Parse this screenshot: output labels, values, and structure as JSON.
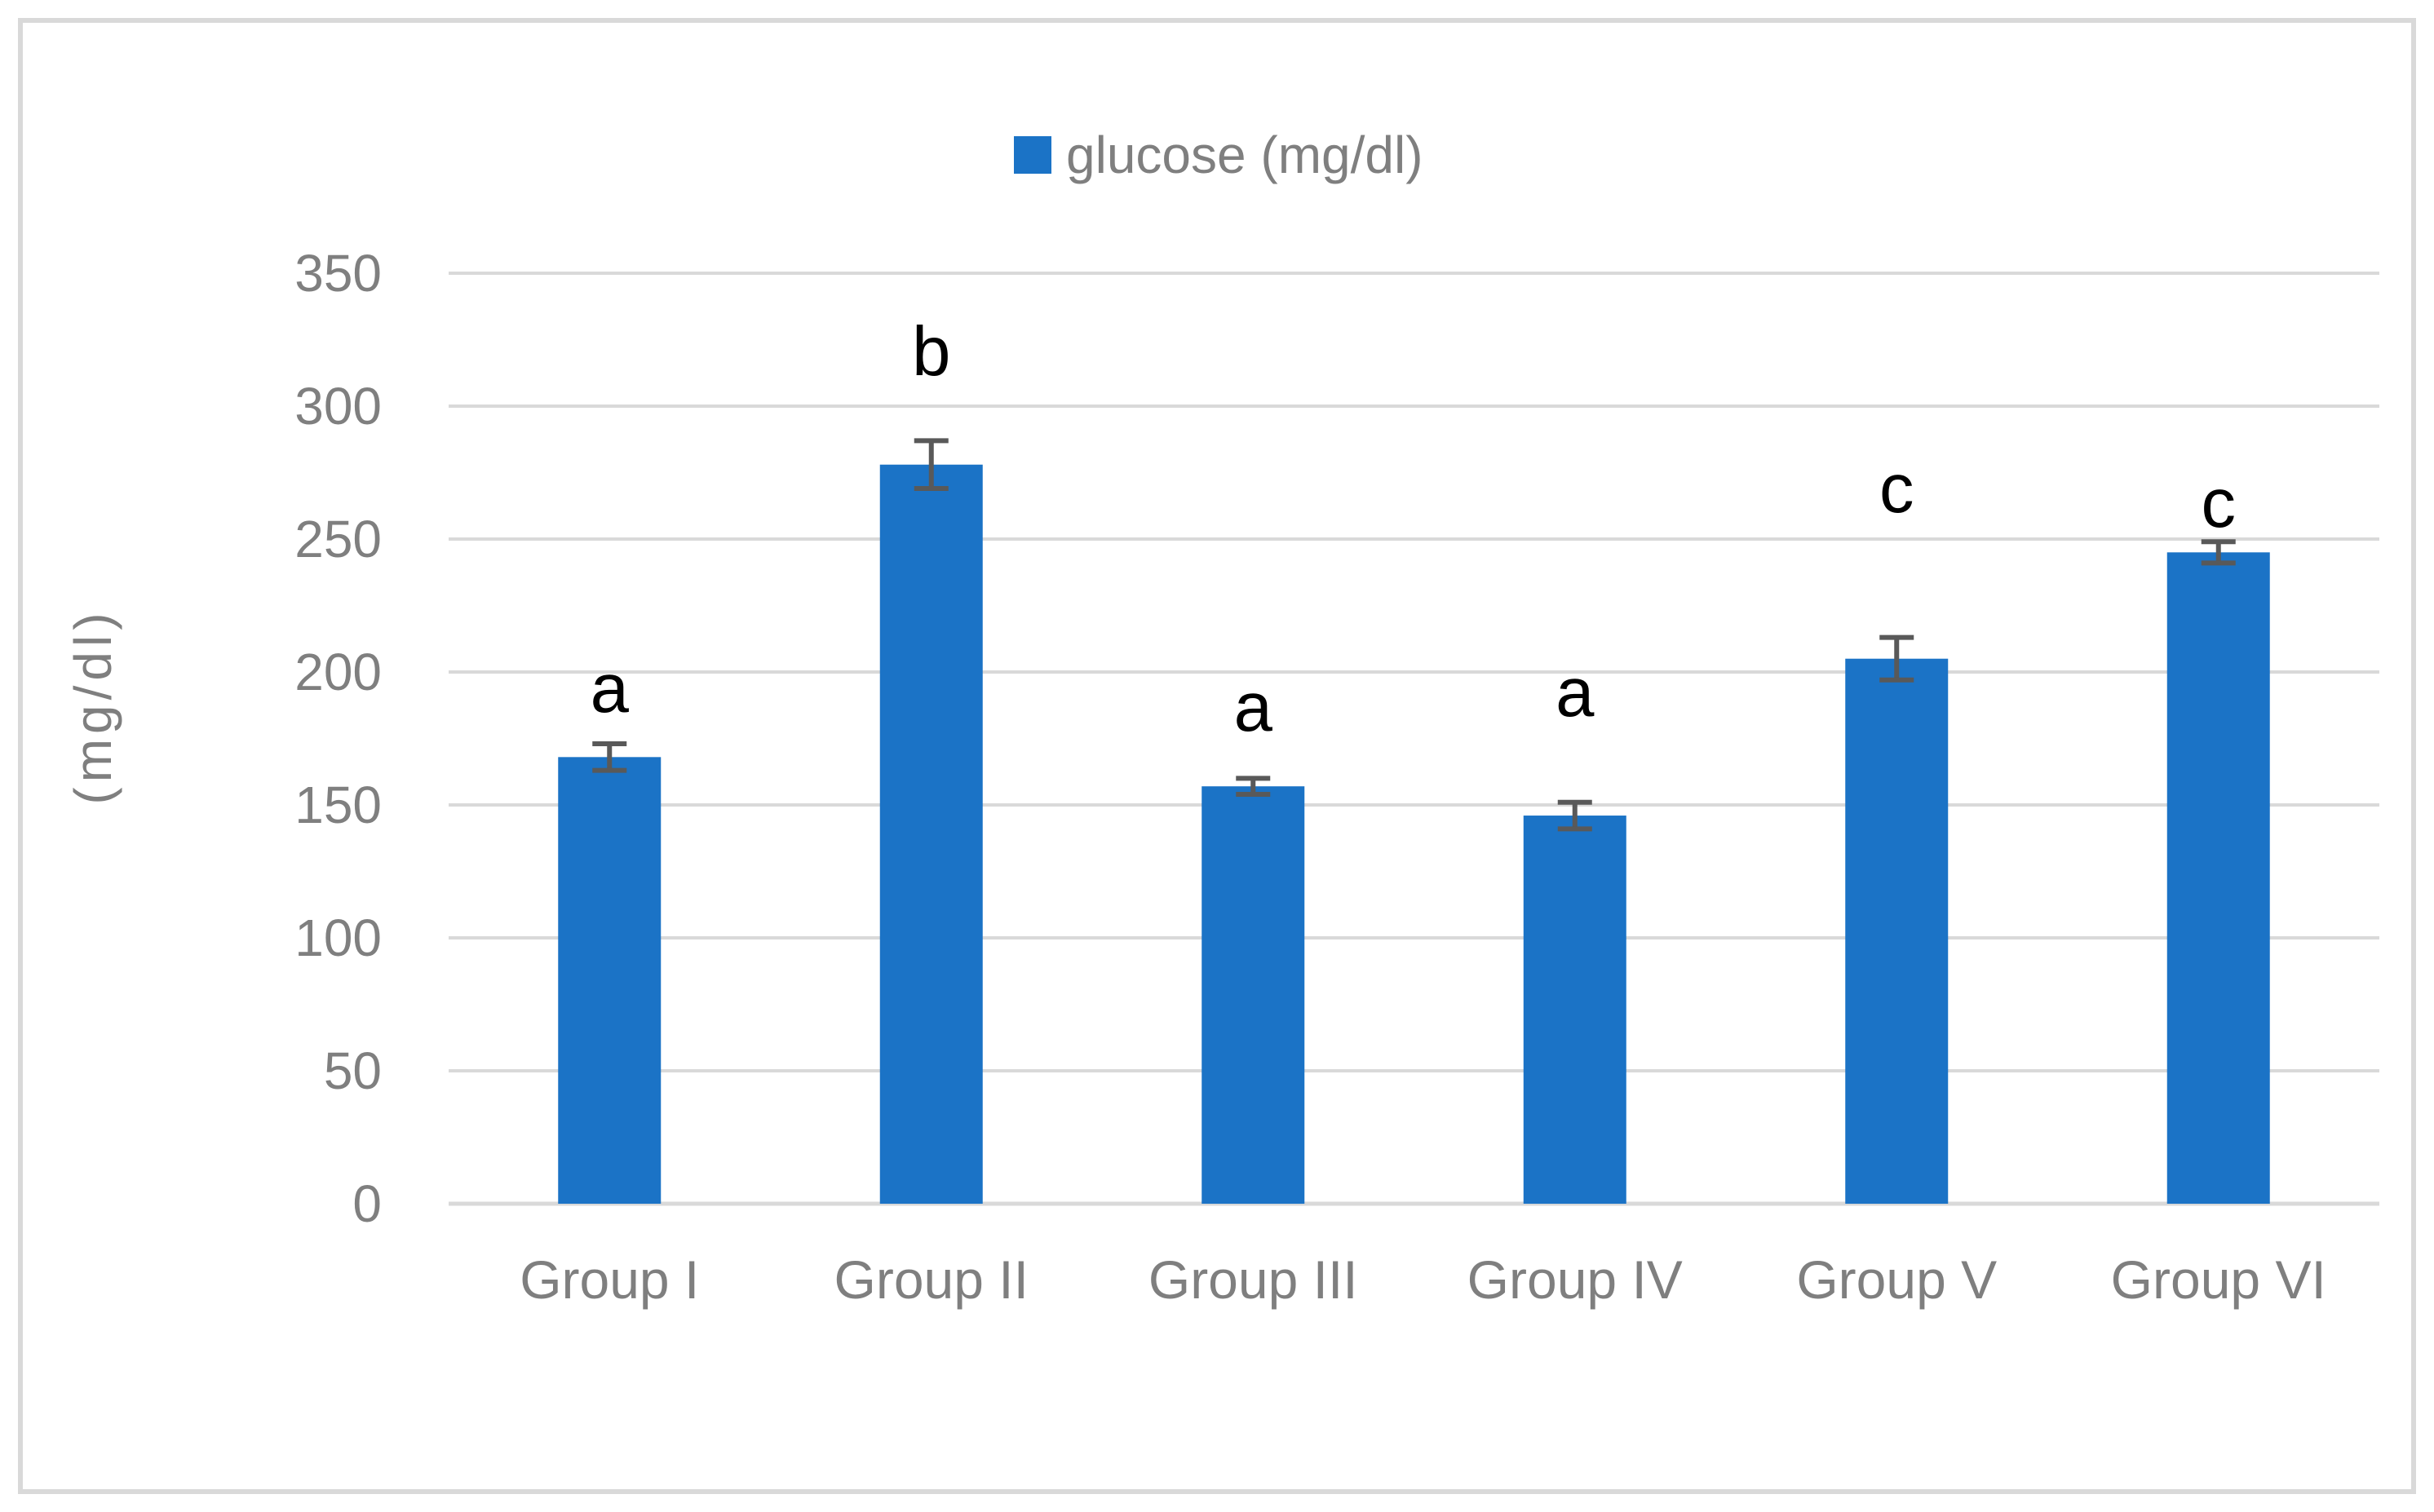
{
  "legend": {
    "label": "glucose (mg/dl)"
  },
  "colors": {
    "bar": "#1B73C6",
    "error_bar": "#595959",
    "gridline": "#D9D9D9",
    "axis_text": "#7F7F7F",
    "annotation_text": "#000000",
    "frame": "#D9D9D9",
    "background": "#FFFFFF"
  },
  "chart_data": {
    "type": "bar",
    "title": "",
    "legend_label": "glucose (mg/dl)",
    "legend_position": "top-center",
    "categories": [
      "Group I",
      "Group II",
      "Group III",
      "Group IV",
      "Group V",
      "Group VI"
    ],
    "values": [
      168,
      278,
      157,
      146,
      205,
      245
    ],
    "error_bars": [
      5,
      9,
      3,
      5,
      8,
      4
    ],
    "significance_letters": [
      "a",
      "b",
      "a",
      "a",
      "c",
      "c"
    ],
    "xlabel": "",
    "ylabel": "(mg/dl)",
    "ylim": [
      0,
      350
    ],
    "ytick_step": 50,
    "ytick_labels": [
      "0",
      "50",
      "100",
      "150",
      "200",
      "250",
      "300",
      "350"
    ],
    "grid": "horizontal"
  }
}
